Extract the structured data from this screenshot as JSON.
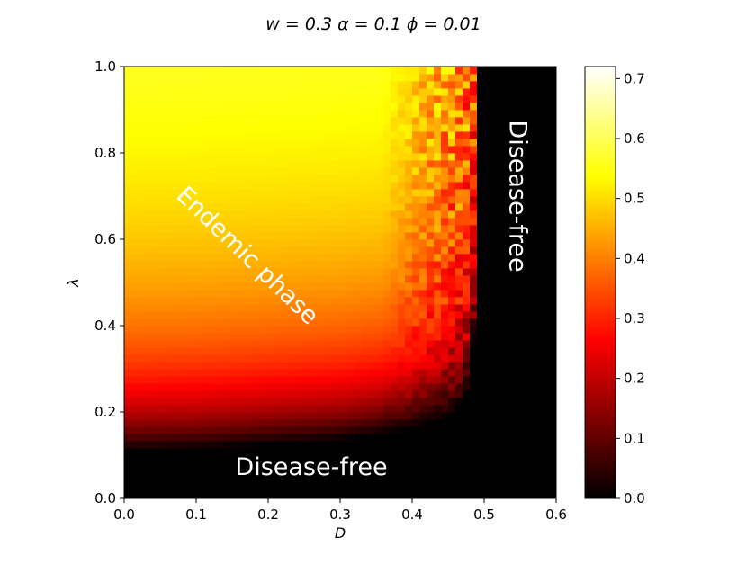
{
  "chart_data": {
    "type": "heatmap",
    "title": "w = 0.3 α = 0.1 ϕ = 0.01",
    "xlabel": "D",
    "ylabel": "λ",
    "xlim": [
      0.0,
      0.6
    ],
    "ylim": [
      0.0,
      1.0
    ],
    "x_ticks": [
      "0.0",
      "0.1",
      "0.2",
      "0.3",
      "0.4",
      "0.5",
      "0.6"
    ],
    "y_ticks": [
      "0.0",
      "0.2",
      "0.4",
      "0.6",
      "0.8",
      "1.0"
    ],
    "colormap": "hot",
    "colorbar": {
      "vmin": 0.0,
      "vmax": 0.72,
      "ticks": [
        "0.0",
        "0.1",
        "0.2",
        "0.3",
        "0.4",
        "0.5",
        "0.6",
        "0.7"
      ]
    },
    "phase_boundary": {
      "threshold_lambda": [
        [
          0.0,
          0.11
        ],
        [
          0.1,
          0.115
        ],
        [
          0.2,
          0.125
        ],
        [
          0.3,
          0.135
        ],
        [
          0.4,
          0.16
        ],
        [
          0.45,
          0.19
        ],
        [
          0.47,
          0.22
        ],
        [
          0.48,
          0.26
        ],
        [
          0.485,
          0.35
        ]
      ],
      "critical_D": 0.49
    },
    "value_scale": {
      "lambda_saturation": 0.72,
      "lambda_half": 0.25
    },
    "annotations": [
      {
        "text": "Endemic phase",
        "x": 0.17,
        "y": 0.56,
        "rotation": 44
      },
      {
        "text": "Disease-free",
        "x": 0.26,
        "y": 0.07,
        "rotation": 0
      },
      {
        "text": "Disease-free",
        "x": 0.545,
        "y": 0.7,
        "rotation": 90
      }
    ]
  }
}
